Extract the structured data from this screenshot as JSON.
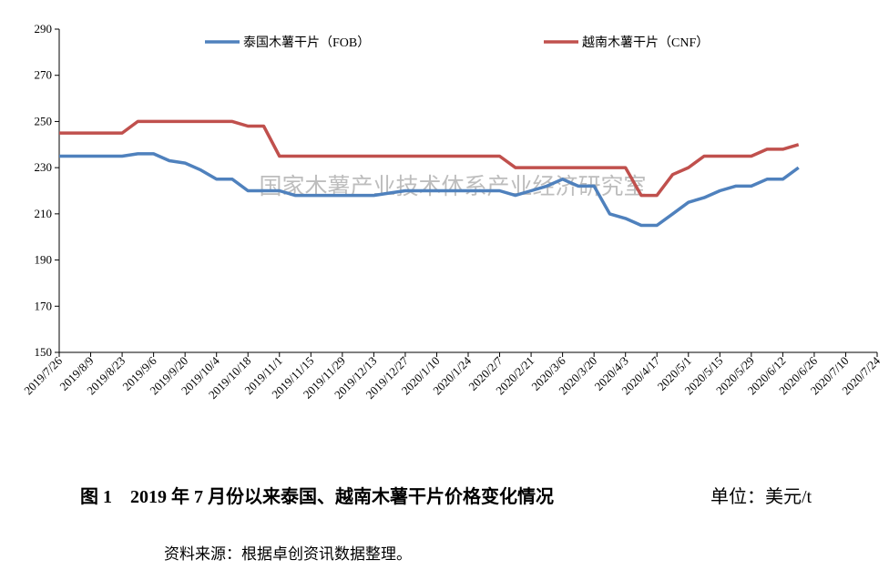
{
  "chart_data": {
    "type": "line",
    "watermark": "国家木薯产业技术体系产业经济研究室",
    "caption": "图 1　2019 年 7 月份以来泰国、越南木薯干片价格变化情况",
    "unit": "单位：美元/t",
    "source": "资料来源：根据卓创资讯数据整理。",
    "categories": [
      "2019/7/26",
      null,
      "2019/8/9",
      null,
      "2019/8/23",
      null,
      "2019/9/6",
      null,
      "2019/9/20",
      null,
      "2019/10/4",
      null,
      "2019/10/18",
      null,
      "2019/11/1",
      null,
      "2019/11/15",
      null,
      "2019/11/29",
      null,
      "2019/12/13",
      null,
      "2019/12/27",
      null,
      "2020/1/10",
      null,
      "2020/1/24",
      null,
      "2020/2/7",
      null,
      "2020/2/21",
      null,
      "2020/3/6",
      null,
      "2020/3/20",
      null,
      "2020/4/3",
      null,
      "2020/4/17",
      null,
      "2020/5/1",
      null,
      "2020/5/15",
      null,
      "2020/5/29",
      null,
      "2020/6/12",
      null,
      "2020/6/26",
      null,
      "2020/7/10",
      null,
      "2020/7/24"
    ],
    "series": [
      {
        "name": "泰国木薯干片（FOB）",
        "color": "#4f81bd",
        "values": [
          235,
          235,
          235,
          235,
          235,
          236,
          236,
          233,
          232,
          229,
          225,
          225,
          220,
          220,
          220,
          218,
          218,
          218,
          218,
          218,
          218,
          219,
          220,
          220,
          220,
          220,
          220,
          220,
          220,
          218,
          220,
          222,
          225,
          222,
          222,
          210,
          208,
          205,
          205,
          210,
          215,
          217,
          220,
          222,
          222,
          225,
          225,
          230,
          null,
          null,
          null,
          null,
          null
        ]
      },
      {
        "name": "越南木薯干片（CNF）",
        "color": "#c0504d",
        "values": [
          245,
          245,
          245,
          245,
          245,
          250,
          250,
          250,
          250,
          250,
          250,
          250,
          248,
          248,
          235,
          235,
          235,
          235,
          235,
          235,
          235,
          235,
          235,
          235,
          235,
          235,
          235,
          235,
          235,
          230,
          230,
          230,
          230,
          230,
          230,
          230,
          230,
          218,
          218,
          227,
          230,
          235,
          235,
          235,
          235,
          238,
          238,
          240,
          null,
          null,
          null,
          null,
          null
        ]
      }
    ],
    "ylim": [
      150,
      290
    ],
    "yticks": [
      150,
      170,
      190,
      210,
      230,
      250,
      270,
      290
    ],
    "grid": false,
    "legend": "top"
  }
}
